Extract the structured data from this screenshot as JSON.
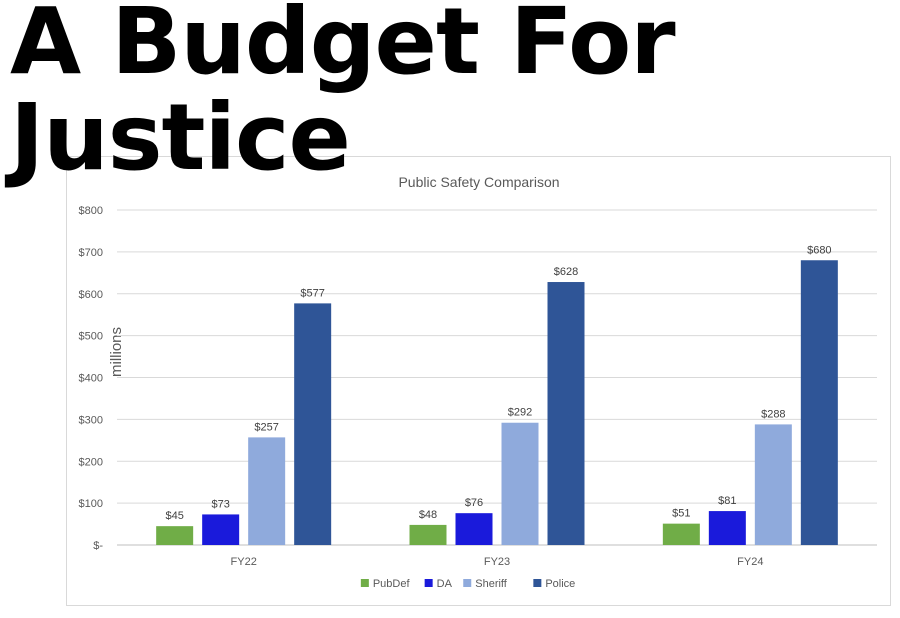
{
  "headline": {
    "line1": "A Budget For",
    "line2": "Justice"
  },
  "chart_data": {
    "type": "bar",
    "title": "Public Safety Comparison",
    "ylabel": "millions",
    "categories": [
      "FY22",
      "FY23",
      "FY24"
    ],
    "series": [
      {
        "name": "PubDef",
        "color": "#70ad47",
        "values": [
          45,
          48,
          51
        ]
      },
      {
        "name": "DA",
        "color": "#1a1adb",
        "values": [
          73,
          76,
          81
        ]
      },
      {
        "name": "Sheriff",
        "color": "#8faadc",
        "values": [
          257,
          292,
          288
        ]
      },
      {
        "name": "Police",
        "color": "#2f5597",
        "values": [
          577,
          628,
          680
        ]
      }
    ],
    "ylim": [
      0,
      800
    ],
    "yticks": [
      0,
      100,
      200,
      300,
      400,
      500,
      600,
      700,
      800
    ],
    "ytick_labels": [
      "$-",
      "$100",
      "$200",
      "$300",
      "$400",
      "$500",
      "$600",
      "$700",
      "$800"
    ],
    "data_label_prefix": "$",
    "grid": true,
    "legend_position": "bottom"
  }
}
